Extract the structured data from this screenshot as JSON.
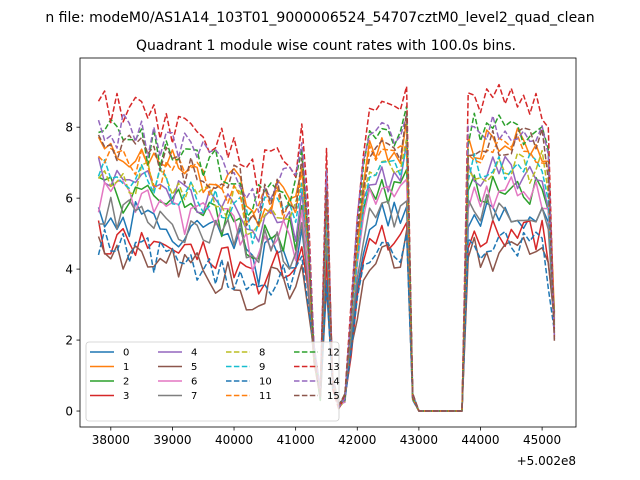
{
  "figure": {
    "suptitle": "n file: modeM0/AS1A14_103T01_9000006524_54707cztM0_level2_quad_clean",
    "title": "Quadrant 1 module wise count rates with 100.0s bins."
  },
  "chart_data": {
    "type": "line",
    "title": "Quadrant 1 module wise count rates with 100.0s bins.",
    "xlabel": "",
    "ylabel": "",
    "x_offset_label": "+5.002e8",
    "xlim": [
      37500,
      45550
    ],
    "ylim": [
      -0.45,
      9.95
    ],
    "xticks": [
      38000,
      39000,
      40000,
      41000,
      42000,
      43000,
      44000,
      45000
    ],
    "yticks": [
      0,
      2,
      4,
      6,
      8
    ],
    "xtick_labels": [
      "38000",
      "39000",
      "40000",
      "41000",
      "42000",
      "43000",
      "44000",
      "45000"
    ],
    "ytick_labels": [
      "0",
      "2",
      "4",
      "6",
      "8"
    ],
    "grid": false,
    "legend_position": "lower-left",
    "legend_columns": 4,
    "segment_breaks": [
      {
        "from": 37800,
        "to": 41000
      },
      {
        "from": 42200,
        "to": 42800
      },
      {
        "from": 43800,
        "to": 45200
      }
    ],
    "series": [
      {
        "name": "0",
        "color": "#1f77b4",
        "dash": "solid",
        "level": 5.6
      },
      {
        "name": "1",
        "color": "#ff7f0e",
        "dash": "solid",
        "level": 7.5
      },
      {
        "name": "2",
        "color": "#2ca02c",
        "dash": "solid",
        "level": 6.3
      },
      {
        "name": "3",
        "color": "#d62728",
        "dash": "solid",
        "level": 5.0
      },
      {
        "name": "4",
        "color": "#9467bd",
        "dash": "solid",
        "level": 6.7
      },
      {
        "name": "5",
        "color": "#8c564b",
        "dash": "solid",
        "level": 4.4
      },
      {
        "name": "6",
        "color": "#e377c2",
        "dash": "solid",
        "level": 6.1
      },
      {
        "name": "7",
        "color": "#7f7f7f",
        "dash": "solid",
        "level": 5.7
      },
      {
        "name": "8",
        "color": "#bcbd22",
        "dash": "dashed",
        "level": 6.9
      },
      {
        "name": "9",
        "color": "#17becf",
        "dash": "dashed",
        "level": 6.9
      },
      {
        "name": "10",
        "color": "#1f77b4",
        "dash": "dashed",
        "level": 4.6
      },
      {
        "name": "11",
        "color": "#ff7f0e",
        "dash": "dashed",
        "level": 7.3
      },
      {
        "name": "12",
        "color": "#2ca02c",
        "dash": "dashed",
        "level": 7.9
      },
      {
        "name": "13",
        "color": "#d62728",
        "dash": "dashed",
        "level": 8.7
      },
      {
        "name": "14",
        "color": "#9467bd",
        "dash": "dashed",
        "level": 8.1
      },
      {
        "name": "15",
        "color": "#8c564b",
        "dash": "dashed",
        "level": 7.6
      }
    ]
  }
}
